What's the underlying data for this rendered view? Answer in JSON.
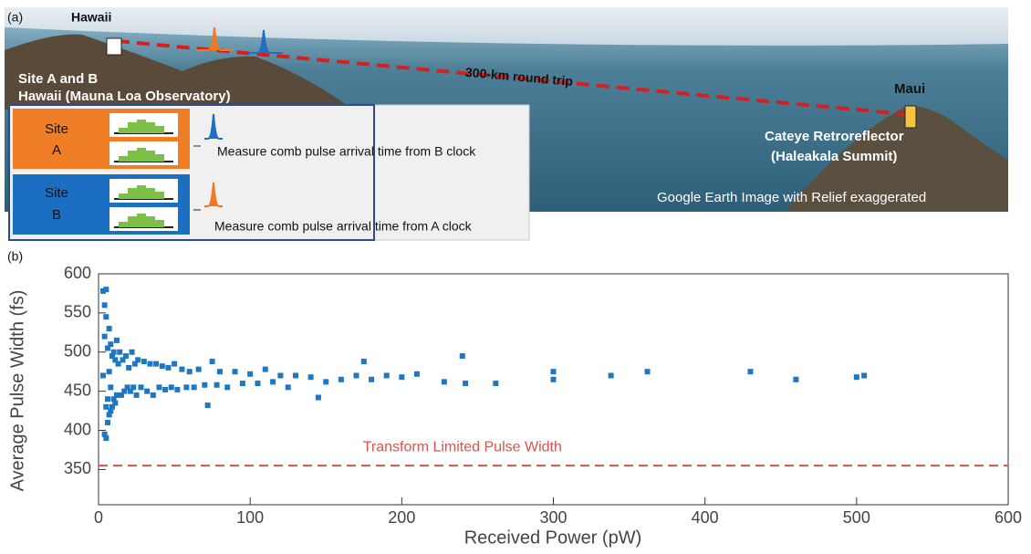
{
  "panel_a": {
    "label": "(a)",
    "hawaii": "Hawaii",
    "site_ab": "Site A and B",
    "observatory": "Hawaii (Mauna Loa Observatory)",
    "trip": "300-km round trip",
    "maui": "Maui",
    "retro": "Cateye Retroreflector",
    "summit": "(Haleakala Summit)",
    "credit": "Google Earth Image with Relief exaggerated",
    "site_a": [
      "Site",
      "A"
    ],
    "site_b": [
      "Site",
      "B"
    ],
    "measure_b": "Measure comb pulse arrival time from B clock",
    "measure_a": "Measure comb pulse arrival time from A clock"
  },
  "chart_data": {
    "type": "scatter",
    "panel_label": "(b)",
    "x_label": "Received Power (pW)",
    "y_label": "Average Pulse Width (fs)",
    "xlim": [
      0,
      600
    ],
    "xticks": [
      0,
      100,
      200,
      300,
      400,
      500,
      600
    ],
    "ylim": [
      305,
      600
    ],
    "yticks": [
      350,
      400,
      450,
      500,
      550,
      600
    ],
    "x": [
      3,
      3,
      4,
      4,
      4,
      5,
      5,
      5,
      5,
      6,
      6,
      6,
      7,
      7,
      7,
      8,
      8,
      8,
      9,
      9,
      10,
      10,
      11,
      11,
      12,
      12,
      13,
      14,
      15,
      16,
      17,
      18,
      19,
      20,
      21,
      22,
      23,
      24,
      25,
      26,
      28,
      30,
      32,
      34,
      36,
      38,
      40,
      42,
      44,
      46,
      48,
      50,
      52,
      55,
      58,
      60,
      63,
      66,
      70,
      72,
      75,
      78,
      80,
      85,
      90,
      95,
      100,
      105,
      110,
      115,
      120,
      125,
      130,
      140,
      145,
      150,
      160,
      170,
      175,
      180,
      190,
      200,
      210,
      228,
      240,
      242,
      262,
      300,
      300,
      338,
      362,
      430,
      460,
      500,
      505
    ],
    "series": [
      {
        "color": "#1f77c4",
        "values": [
          578,
          470,
          560,
          395,
          520,
          580,
          390,
          545,
          430,
          505,
          410,
          440,
          530,
          420,
          475,
          510,
          425,
          455,
          495,
          430,
          500,
          440,
          490,
          435,
          515,
          445,
          485,
          500,
          445,
          490,
          450,
          495,
          455,
          480,
          450,
          500,
          455,
          485,
          445,
          490,
          455,
          488,
          450,
          485,
          445,
          485,
          455,
          482,
          452,
          480,
          455,
          485,
          452,
          478,
          455,
          475,
          455,
          478,
          458,
          432,
          488,
          458,
          475,
          455,
          475,
          460,
          472,
          460,
          478,
          462,
          470,
          455,
          470,
          468,
          442,
          462,
          465,
          470,
          488,
          465,
          470,
          468,
          472,
          462,
          495,
          460,
          460,
          475,
          465,
          470,
          475,
          475,
          465,
          468,
          470
        ]
      }
    ],
    "reference_line": {
      "value": 355,
      "label": "Transform Limited Pulse Width",
      "color": "#d9534f"
    }
  }
}
